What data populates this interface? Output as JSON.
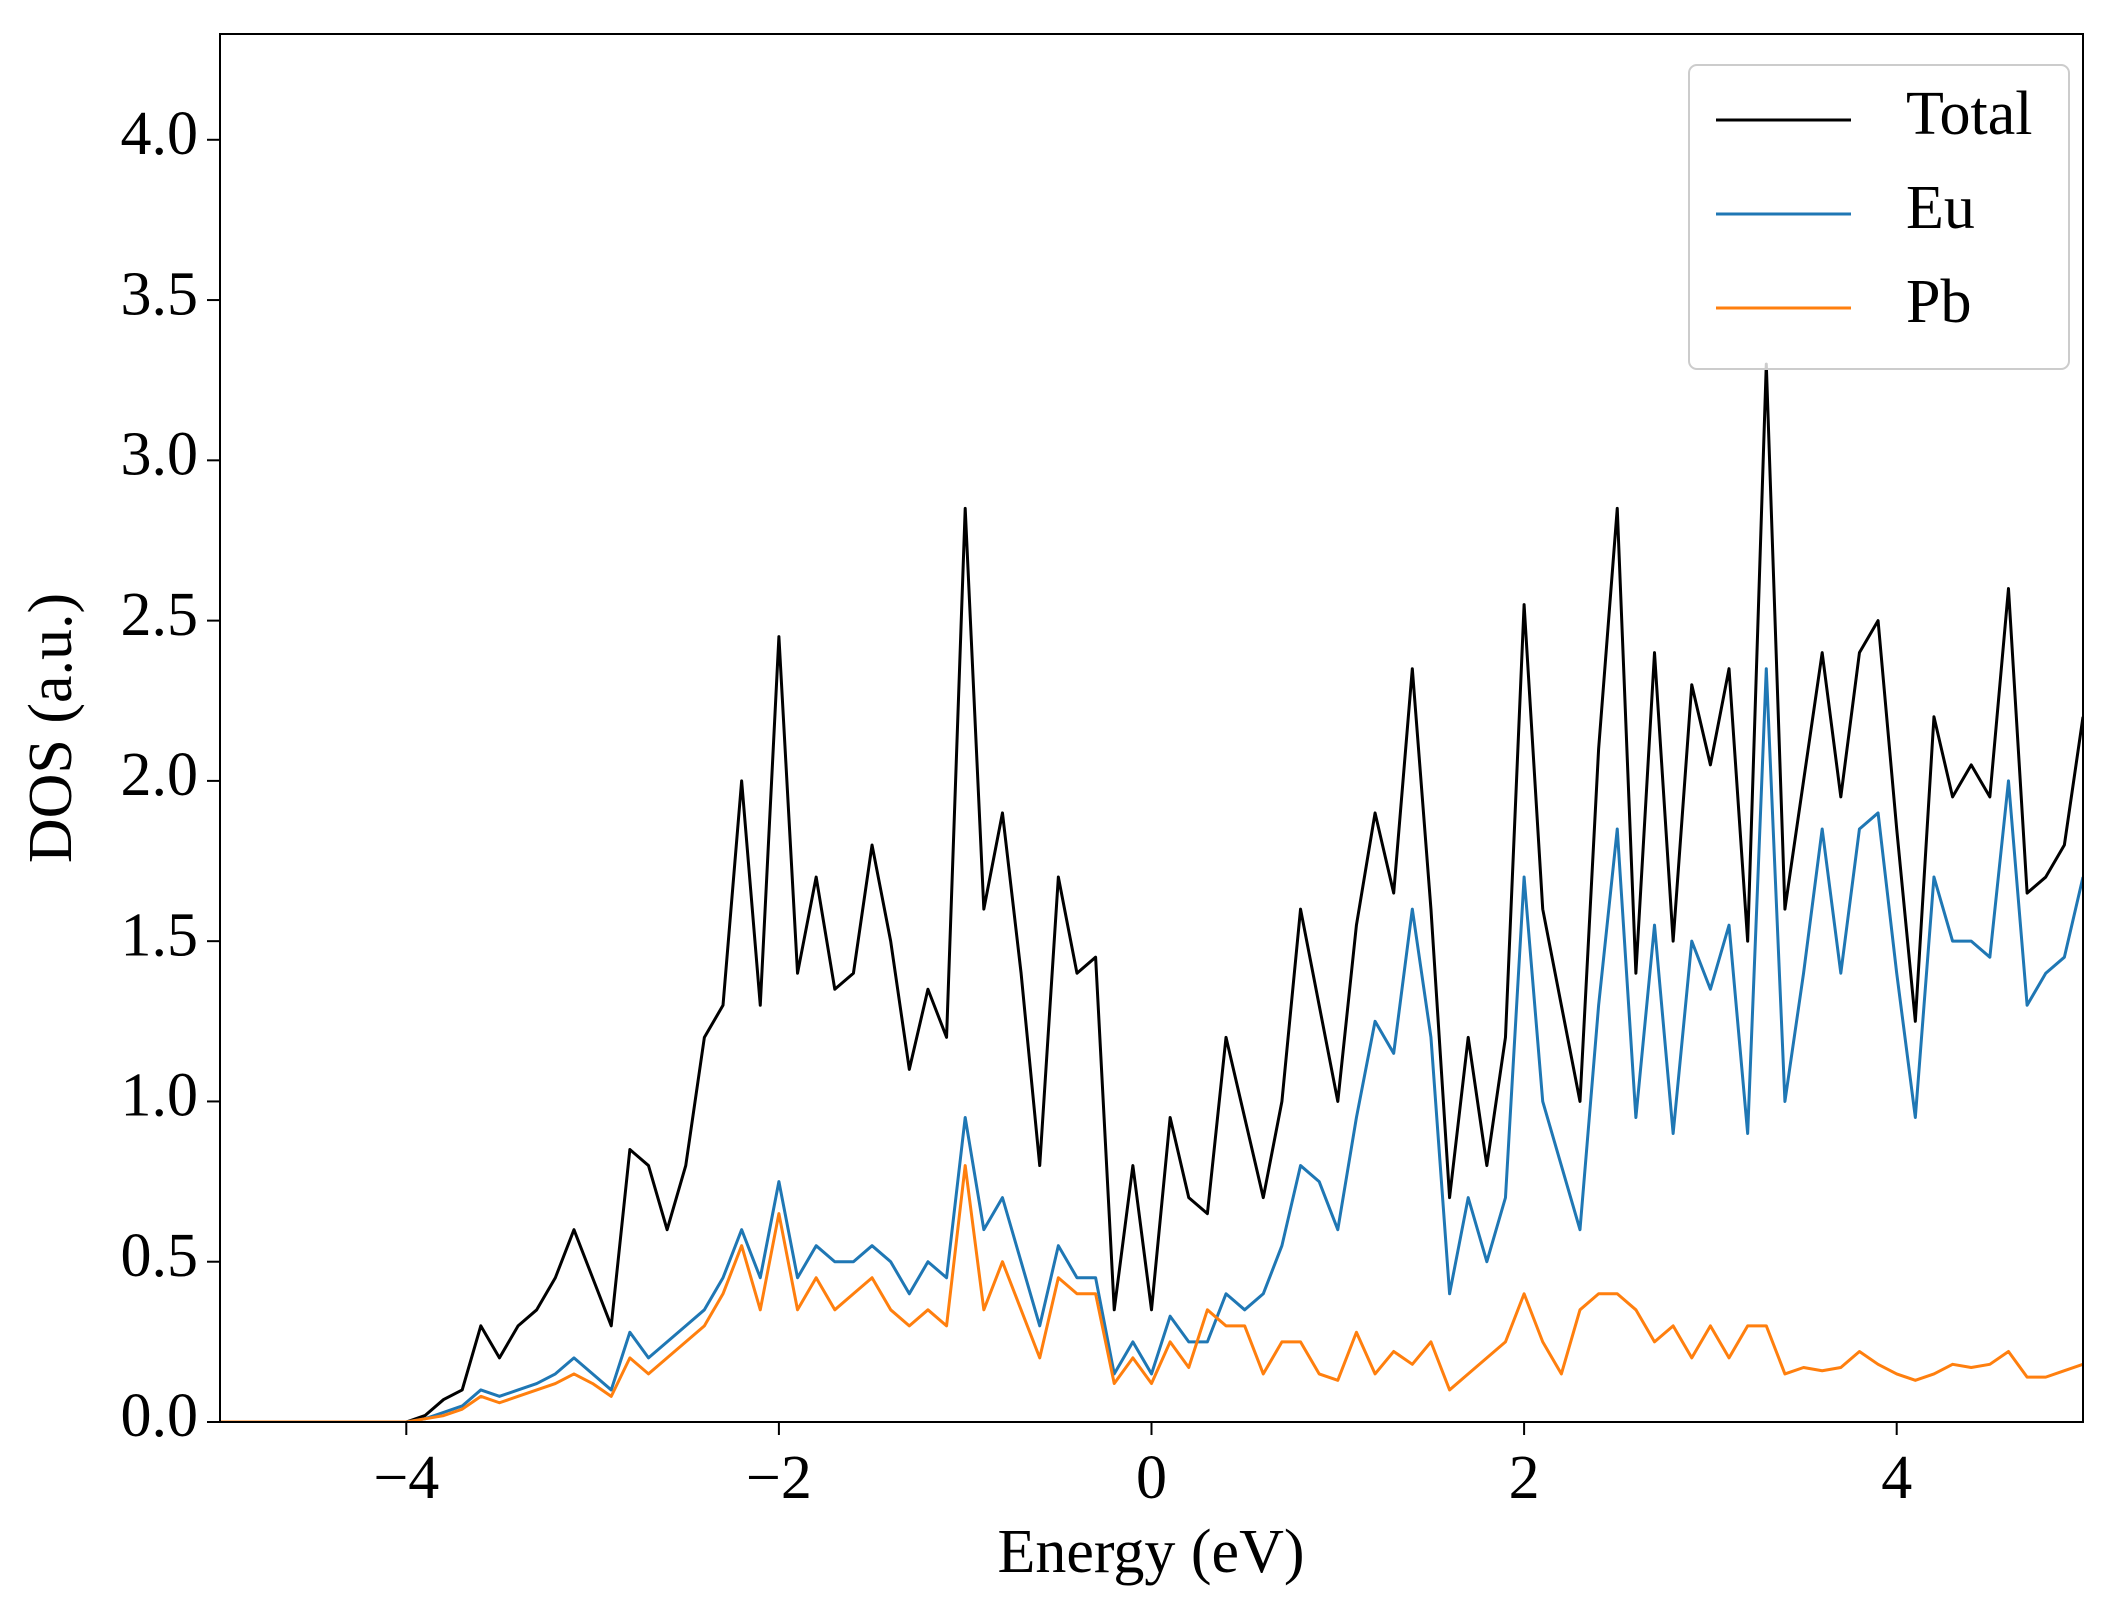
{
  "chart_data": {
    "type": "line",
    "xlabel": "Energy (eV)",
    "ylabel": "DOS (a.u.)",
    "x": [
      -5,
      -4.9,
      -4.8,
      -4.7,
      -4.6,
      -4.5,
      -4.4,
      -4.3,
      -4.2,
      -4.1,
      -4,
      -3.9,
      -3.8,
      -3.7,
      -3.6,
      -3.5,
      -3.4,
      -3.3,
      -3.2,
      -3.1,
      -3,
      -2.9,
      -2.8,
      -2.7,
      -2.6,
      -2.5,
      -2.4,
      -2.3,
      -2.2,
      -2.1,
      -2,
      -1.9,
      -1.8,
      -1.7,
      -1.6,
      -1.5,
      -1.4,
      -1.3,
      -1.2,
      -1.1,
      -1,
      -0.9,
      -0.8,
      -0.7,
      -0.6,
      -0.5,
      -0.4,
      -0.3,
      -0.2,
      -0.1,
      0,
      0.1,
      0.2,
      0.3,
      0.4,
      0.5,
      0.6,
      0.7,
      0.8,
      0.9,
      1,
      1.1,
      1.2,
      1.3,
      1.4,
      1.5,
      1.6,
      1.7,
      1.8,
      1.9,
      2,
      2.1,
      2.2,
      2.3,
      2.4,
      2.5,
      2.6,
      2.7,
      2.8,
      2.9,
      3,
      3.1,
      3.2,
      3.3,
      3.4,
      3.5,
      3.6,
      3.7,
      3.8,
      3.9,
      4,
      4.1,
      4.2,
      4.3,
      4.4,
      4.5,
      4.6,
      4.7,
      4.8,
      4.9,
      5
    ],
    "series": [
      {
        "name": "Total",
        "color": "#000000",
        "values": [
          0,
          0,
          0,
          0,
          0,
          0,
          0,
          0,
          0,
          0,
          0,
          0.02,
          0.07,
          0.1,
          0.3,
          0.2,
          0.3,
          0.35,
          0.45,
          0.6,
          0.45,
          0.3,
          0.85,
          0.8,
          0.6,
          0.8,
          1.2,
          1.3,
          2.0,
          1.3,
          2.45,
          1.4,
          1.7,
          1.35,
          1.4,
          1.8,
          1.5,
          1.1,
          1.35,
          1.2,
          2.85,
          1.6,
          1.9,
          1.4,
          0.8,
          1.7,
          1.4,
          1.45,
          0.35,
          0.8,
          0.35,
          0.95,
          0.7,
          0.65,
          1.2,
          0.95,
          0.7,
          1.0,
          1.6,
          1.3,
          1.0,
          1.55,
          1.9,
          1.65,
          2.35,
          1.6,
          0.7,
          1.2,
          0.8,
          1.2,
          2.55,
          1.6,
          1.3,
          1.0,
          2.1,
          2.85,
          1.4,
          2.4,
          1.5,
          2.3,
          2.05,
          2.35,
          1.5,
          3.3,
          1.6,
          2.0,
          2.4,
          1.95,
          2.4,
          2.5,
          1.85,
          1.25,
          2.2,
          1.95,
          2.05,
          1.95,
          2.6,
          1.65,
          1.7,
          1.8,
          2.2
        ]
      },
      {
        "name": "Eu",
        "color": "#1f77b4",
        "values": [
          0,
          0,
          0,
          0,
          0,
          0,
          0,
          0,
          0,
          0,
          0,
          0.01,
          0.03,
          0.05,
          0.1,
          0.08,
          0.1,
          0.12,
          0.15,
          0.2,
          0.15,
          0.1,
          0.28,
          0.2,
          0.25,
          0.3,
          0.35,
          0.45,
          0.6,
          0.45,
          0.75,
          0.45,
          0.55,
          0.5,
          0.5,
          0.55,
          0.5,
          0.4,
          0.5,
          0.45,
          0.95,
          0.6,
          0.7,
          0.5,
          0.3,
          0.55,
          0.45,
          0.45,
          0.15,
          0.25,
          0.15,
          0.33,
          0.25,
          0.25,
          0.4,
          0.35,
          0.4,
          0.55,
          0.8,
          0.75,
          0.6,
          0.95,
          1.25,
          1.15,
          1.6,
          1.2,
          0.4,
          0.7,
          0.5,
          0.7,
          1.7,
          1.0,
          0.8,
          0.6,
          1.3,
          1.85,
          0.95,
          1.55,
          0.9,
          1.5,
          1.35,
          1.55,
          0.9,
          2.35,
          1.0,
          1.4,
          1.85,
          1.4,
          1.85,
          1.9,
          1.4,
          0.95,
          1.7,
          1.5,
          1.5,
          1.45,
          2.0,
          1.3,
          1.4,
          1.45,
          1.7
        ]
      },
      {
        "name": "Pb",
        "color": "#ff7f0e",
        "values": [
          0,
          0,
          0,
          0,
          0,
          0,
          0,
          0,
          0,
          0,
          0,
          0.01,
          0.02,
          0.04,
          0.08,
          0.06,
          0.08,
          0.1,
          0.12,
          0.15,
          0.12,
          0.08,
          0.2,
          0.15,
          0.2,
          0.25,
          0.3,
          0.4,
          0.55,
          0.35,
          0.65,
          0.35,
          0.45,
          0.35,
          0.4,
          0.45,
          0.35,
          0.3,
          0.35,
          0.3,
          0.8,
          0.35,
          0.5,
          0.35,
          0.2,
          0.45,
          0.4,
          0.4,
          0.12,
          0.2,
          0.12,
          0.25,
          0.17,
          0.35,
          0.3,
          0.3,
          0.15,
          0.25,
          0.25,
          0.15,
          0.13,
          0.28,
          0.15,
          0.22,
          0.18,
          0.25,
          0.1,
          0.15,
          0.2,
          0.25,
          0.4,
          0.25,
          0.15,
          0.35,
          0.4,
          0.4,
          0.35,
          0.25,
          0.3,
          0.2,
          0.3,
          0.2,
          0.3,
          0.3,
          0.15,
          0.17,
          0.16,
          0.17,
          0.22,
          0.18,
          0.15,
          0.13,
          0.15,
          0.18,
          0.17,
          0.18,
          0.22,
          0.14,
          0.14,
          0.16,
          0.18
        ]
      }
    ],
    "xlim": [
      -5,
      5
    ],
    "xticks": [
      {
        "value": -4,
        "label": "−4"
      },
      {
        "value": -2,
        "label": "−2"
      },
      0,
      2,
      4
    ],
    "ylim": [
      0,
      4.33
    ],
    "yticks": [
      {
        "value": 0,
        "label": "0.0"
      },
      {
        "value": 0.5,
        "label": "0.5"
      },
      {
        "value": 1,
        "label": "1.0"
      },
      {
        "value": 1.5,
        "label": "1.5"
      },
      {
        "value": 2,
        "label": "2.0"
      },
      {
        "value": 2.5,
        "label": "2.5"
      },
      {
        "value": 3,
        "label": "3.0"
      },
      {
        "value": 3.5,
        "label": "3.5"
      },
      {
        "value": 4,
        "label": "4.0"
      }
    ],
    "legend": "upper right"
  }
}
